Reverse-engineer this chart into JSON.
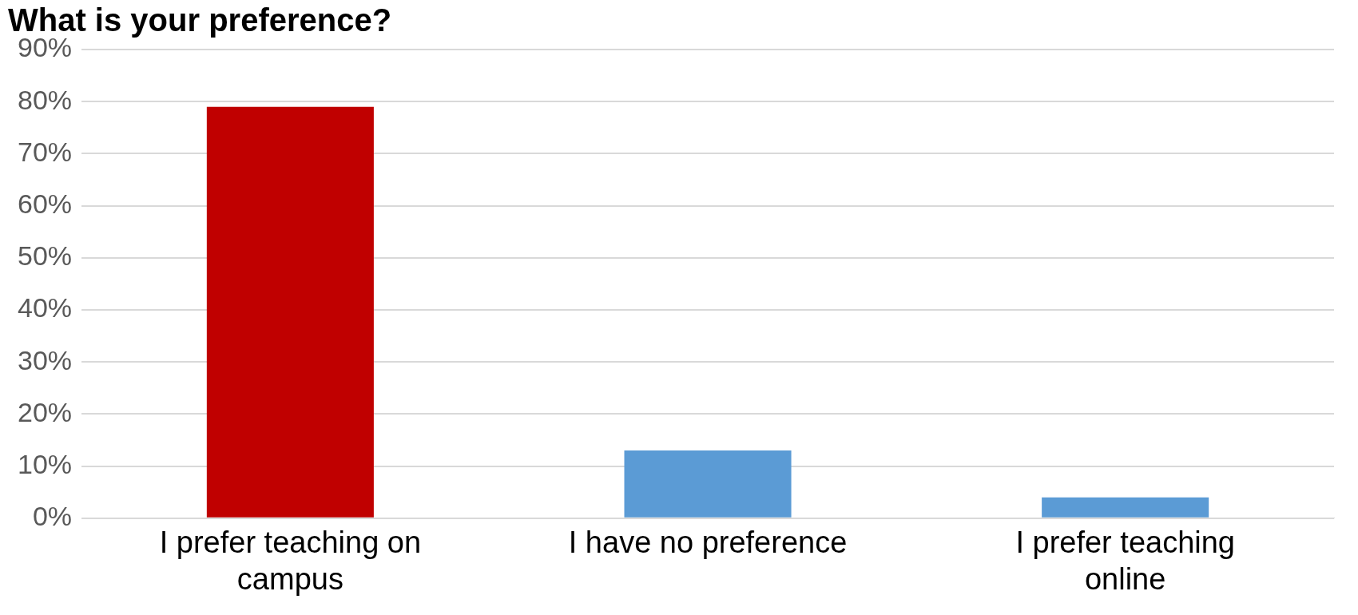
{
  "chart_data": {
    "type": "bar",
    "title": "What is your preference?",
    "categories": [
      "I prefer teaching on campus",
      "I have no preference",
      "I prefer teaching online"
    ],
    "values": [
      79,
      13,
      4
    ],
    "colors": [
      "#c00000",
      "#5b9bd5",
      "#5b9bd5"
    ],
    "ylim": [
      0,
      90
    ],
    "yticks": [
      {
        "value": 0,
        "label": "0%"
      },
      {
        "value": 10,
        "label": "10%"
      },
      {
        "value": 20,
        "label": "20%"
      },
      {
        "value": 30,
        "label": "30%"
      },
      {
        "value": 40,
        "label": "40%"
      },
      {
        "value": 50,
        "label": "50%"
      },
      {
        "value": 60,
        "label": "60%"
      },
      {
        "value": 70,
        "label": "70%"
      },
      {
        "value": 80,
        "label": "80%"
      },
      {
        "value": 90,
        "label": "90%"
      }
    ],
    "grid": "y",
    "legend": false
  }
}
